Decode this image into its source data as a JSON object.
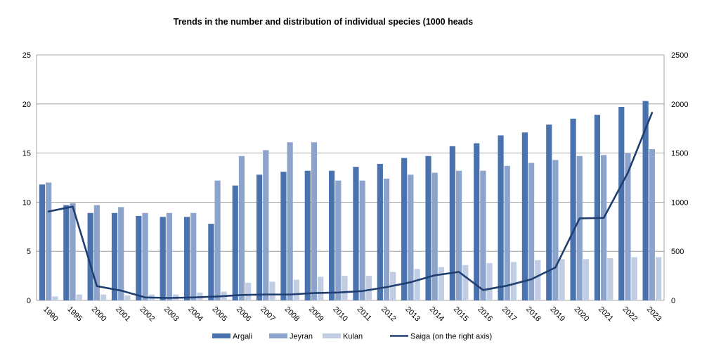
{
  "chart_data": {
    "type": "bar",
    "title": "Trends in the number and distribution  of individual  species (1000 heads",
    "categories": [
      "1990",
      "1995",
      "2000",
      "2001",
      "2002",
      "2003",
      "2004",
      "2005",
      "2006",
      "2007",
      "2008",
      "2009",
      "2010",
      "2011",
      "2012",
      "2013",
      "2014",
      "2015",
      "2016",
      "2017",
      "2018",
      "2019",
      "2020",
      "2021",
      "2022",
      "2023"
    ],
    "left_axis": {
      "min": 0,
      "max": 25,
      "ticks": [
        "0",
        "5",
        "10",
        "15",
        "20",
        "25"
      ]
    },
    "right_axis": {
      "min": 0,
      "max": 2500,
      "ticks": [
        "0",
        "500",
        "1000",
        "1500",
        "2000",
        "2500"
      ]
    },
    "grid": true,
    "legend_position": "bottom",
    "series": [
      {
        "name": "Argali",
        "type": "bar",
        "axis": "left",
        "color": "#4a72ae",
        "values": [
          11.8,
          9.7,
          8.9,
          8.9,
          8.6,
          8.5,
          8.5,
          7.8,
          11.7,
          12.8,
          13.1,
          13.2,
          13.2,
          13.6,
          13.9,
          14.5,
          14.7,
          15.7,
          16.0,
          16.8,
          17.1,
          17.9,
          18.5,
          18.9,
          19.7,
          20.3
        ]
      },
      {
        "name": "Jeyran",
        "type": "bar",
        "axis": "left",
        "color": "#8ca4cc",
        "values": [
          12.0,
          9.9,
          9.7,
          9.5,
          8.9,
          8.9,
          8.9,
          12.2,
          14.7,
          15.3,
          16.1,
          16.1,
          12.2,
          12.2,
          12.4,
          12.8,
          13.0,
          13.2,
          13.2,
          13.7,
          14.0,
          14.3,
          14.7,
          14.8,
          15.0,
          15.4
        ]
      },
      {
        "name": "Kulan",
        "type": "bar",
        "axis": "left",
        "color": "#c0cde3",
        "values": [
          0.4,
          0.6,
          0.6,
          0.5,
          0.6,
          0.6,
          0.8,
          0.9,
          1.8,
          1.9,
          2.1,
          2.4,
          2.5,
          2.5,
          2.9,
          3.2,
          3.4,
          3.6,
          3.8,
          3.9,
          4.1,
          4.2,
          4.2,
          4.3,
          4.4,
          4.4
        ]
      },
      {
        "name": "Saiga (on the right axis)",
        "type": "line",
        "axis": "right",
        "color": "#203f70",
        "values": [
          905,
          955,
          145,
          100,
          30,
          25,
          30,
          40,
          55,
          60,
          60,
          75,
          80,
          95,
          135,
          185,
          255,
          290,
          105,
          150,
          215,
          335,
          835,
          840,
          1300,
          1910
        ]
      }
    ]
  }
}
